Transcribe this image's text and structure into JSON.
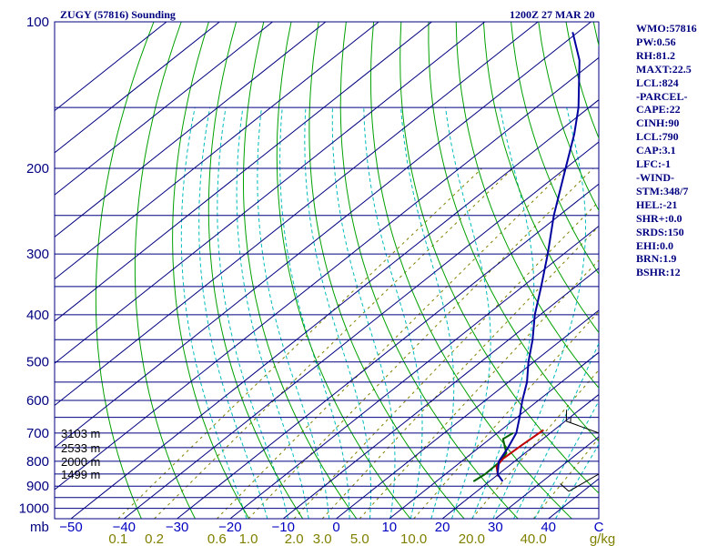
{
  "header": {
    "title": "ZUGY (57816) Sounding",
    "datetime": "1200Z 27 MAR 20"
  },
  "side_panel": [
    "WMO:57816",
    "PW:0.56",
    "RH:81.2",
    "MAXT:22.5",
    "LCL:824",
    "-PARCEL-",
    "CAPE:22",
    "CINH:90",
    "LCL:790",
    "CAP:3.1",
    "LFC:-1",
    "-WIND-",
    "STM:348/7",
    "HEL:-21",
    "SHR+:0.0",
    "SRDS:150",
    "EHI:0.0",
    "BRN:1.9",
    "BSHR:12"
  ],
  "colors": {
    "isobar": "#000080",
    "isotherm": "#000080",
    "dry_adiabat": "#00a000",
    "moist_adiabat": "#00bbbb",
    "mixing_ratio": "#808000",
    "temperature": "#0000a0",
    "dewpoint": "#006000",
    "parcel": "#c00000",
    "x_tick": "#0000c0",
    "mix_tick": "#808000"
  },
  "chart_data": {
    "type": "skew-t",
    "pressure_labels": [
      100,
      200,
      300,
      400,
      500,
      600,
      700,
      800,
      900,
      1000
    ],
    "pressure_unit_label": "mb",
    "temperature_ticks": [
      "−50",
      "−40",
      "−30",
      "−20",
      "−10",
      "0",
      "10",
      "20",
      "30",
      "40",
      "C"
    ],
    "temperature_tick_values": [
      -50,
      -40,
      -30,
      -20,
      -10,
      0,
      10,
      20,
      30,
      40
    ],
    "mixing_ratio_labels": [
      "0.1",
      "0.2",
      "0.6",
      "1.0",
      "2.0",
      "3.0",
      "5.0",
      "10.0",
      "20.0",
      "40.0",
      "g/kg"
    ],
    "mixing_ratio_values": [
      0.1,
      0.2,
      0.6,
      1.0,
      2.0,
      3.0,
      5.0,
      10.0,
      20.0,
      40.0
    ],
    "height_labels": [
      {
        "pressure": 700,
        "text": "3103 m"
      },
      {
        "pressure": 750,
        "text": "2533 m"
      },
      {
        "pressure": 800,
        "text": "2000 m"
      },
      {
        "pressure": 850,
        "text": "1499 m"
      }
    ],
    "temperature_profile": [
      {
        "p": 880,
        "t": 22.5
      },
      {
        "p": 850,
        "t": 19.8
      },
      {
        "p": 800,
        "t": 17.0
      },
      {
        "p": 750,
        "t": 15.5
      },
      {
        "p": 700,
        "t": 13.6
      },
      {
        "p": 650,
        "t": 10.5
      },
      {
        "p": 600,
        "t": 7.0
      },
      {
        "p": 550,
        "t": 3.5
      },
      {
        "p": 500,
        "t": -1.0
      },
      {
        "p": 450,
        "t": -5.5
      },
      {
        "p": 400,
        "t": -11.0
      },
      {
        "p": 350,
        "t": -16.5
      },
      {
        "p": 300,
        "t": -23.0
      },
      {
        "p": 250,
        "t": -31.0
      },
      {
        "p": 200,
        "t": -40.0
      },
      {
        "p": 170,
        "t": -46.5
      },
      {
        "p": 150,
        "t": -52.0
      },
      {
        "p": 120,
        "t": -63.0
      },
      {
        "p": 105,
        "t": -71.0
      }
    ],
    "dewpoint_profile": [
      {
        "p": 880,
        "t": 17.0
      },
      {
        "p": 850,
        "t": 17.5
      },
      {
        "p": 800,
        "t": 17.3
      },
      {
        "p": 770,
        "t": 16.5
      },
      {
        "p": 720,
        "t": 12.5
      },
      {
        "p": 700,
        "t": 13.0
      }
    ],
    "parcel_profile": [
      {
        "p": 860,
        "t": 20.5
      },
      {
        "p": 820,
        "t": 17.8
      },
      {
        "p": 790,
        "t": 17.2
      },
      {
        "p": 740,
        "t": 17.5
      },
      {
        "p": 690,
        "t": 18.0
      }
    ],
    "wind_barbs": [
      {
        "p": 700,
        "dir": 290,
        "speed": 15
      },
      {
        "p": 850,
        "dir": 240,
        "speed": 10
      }
    ]
  }
}
